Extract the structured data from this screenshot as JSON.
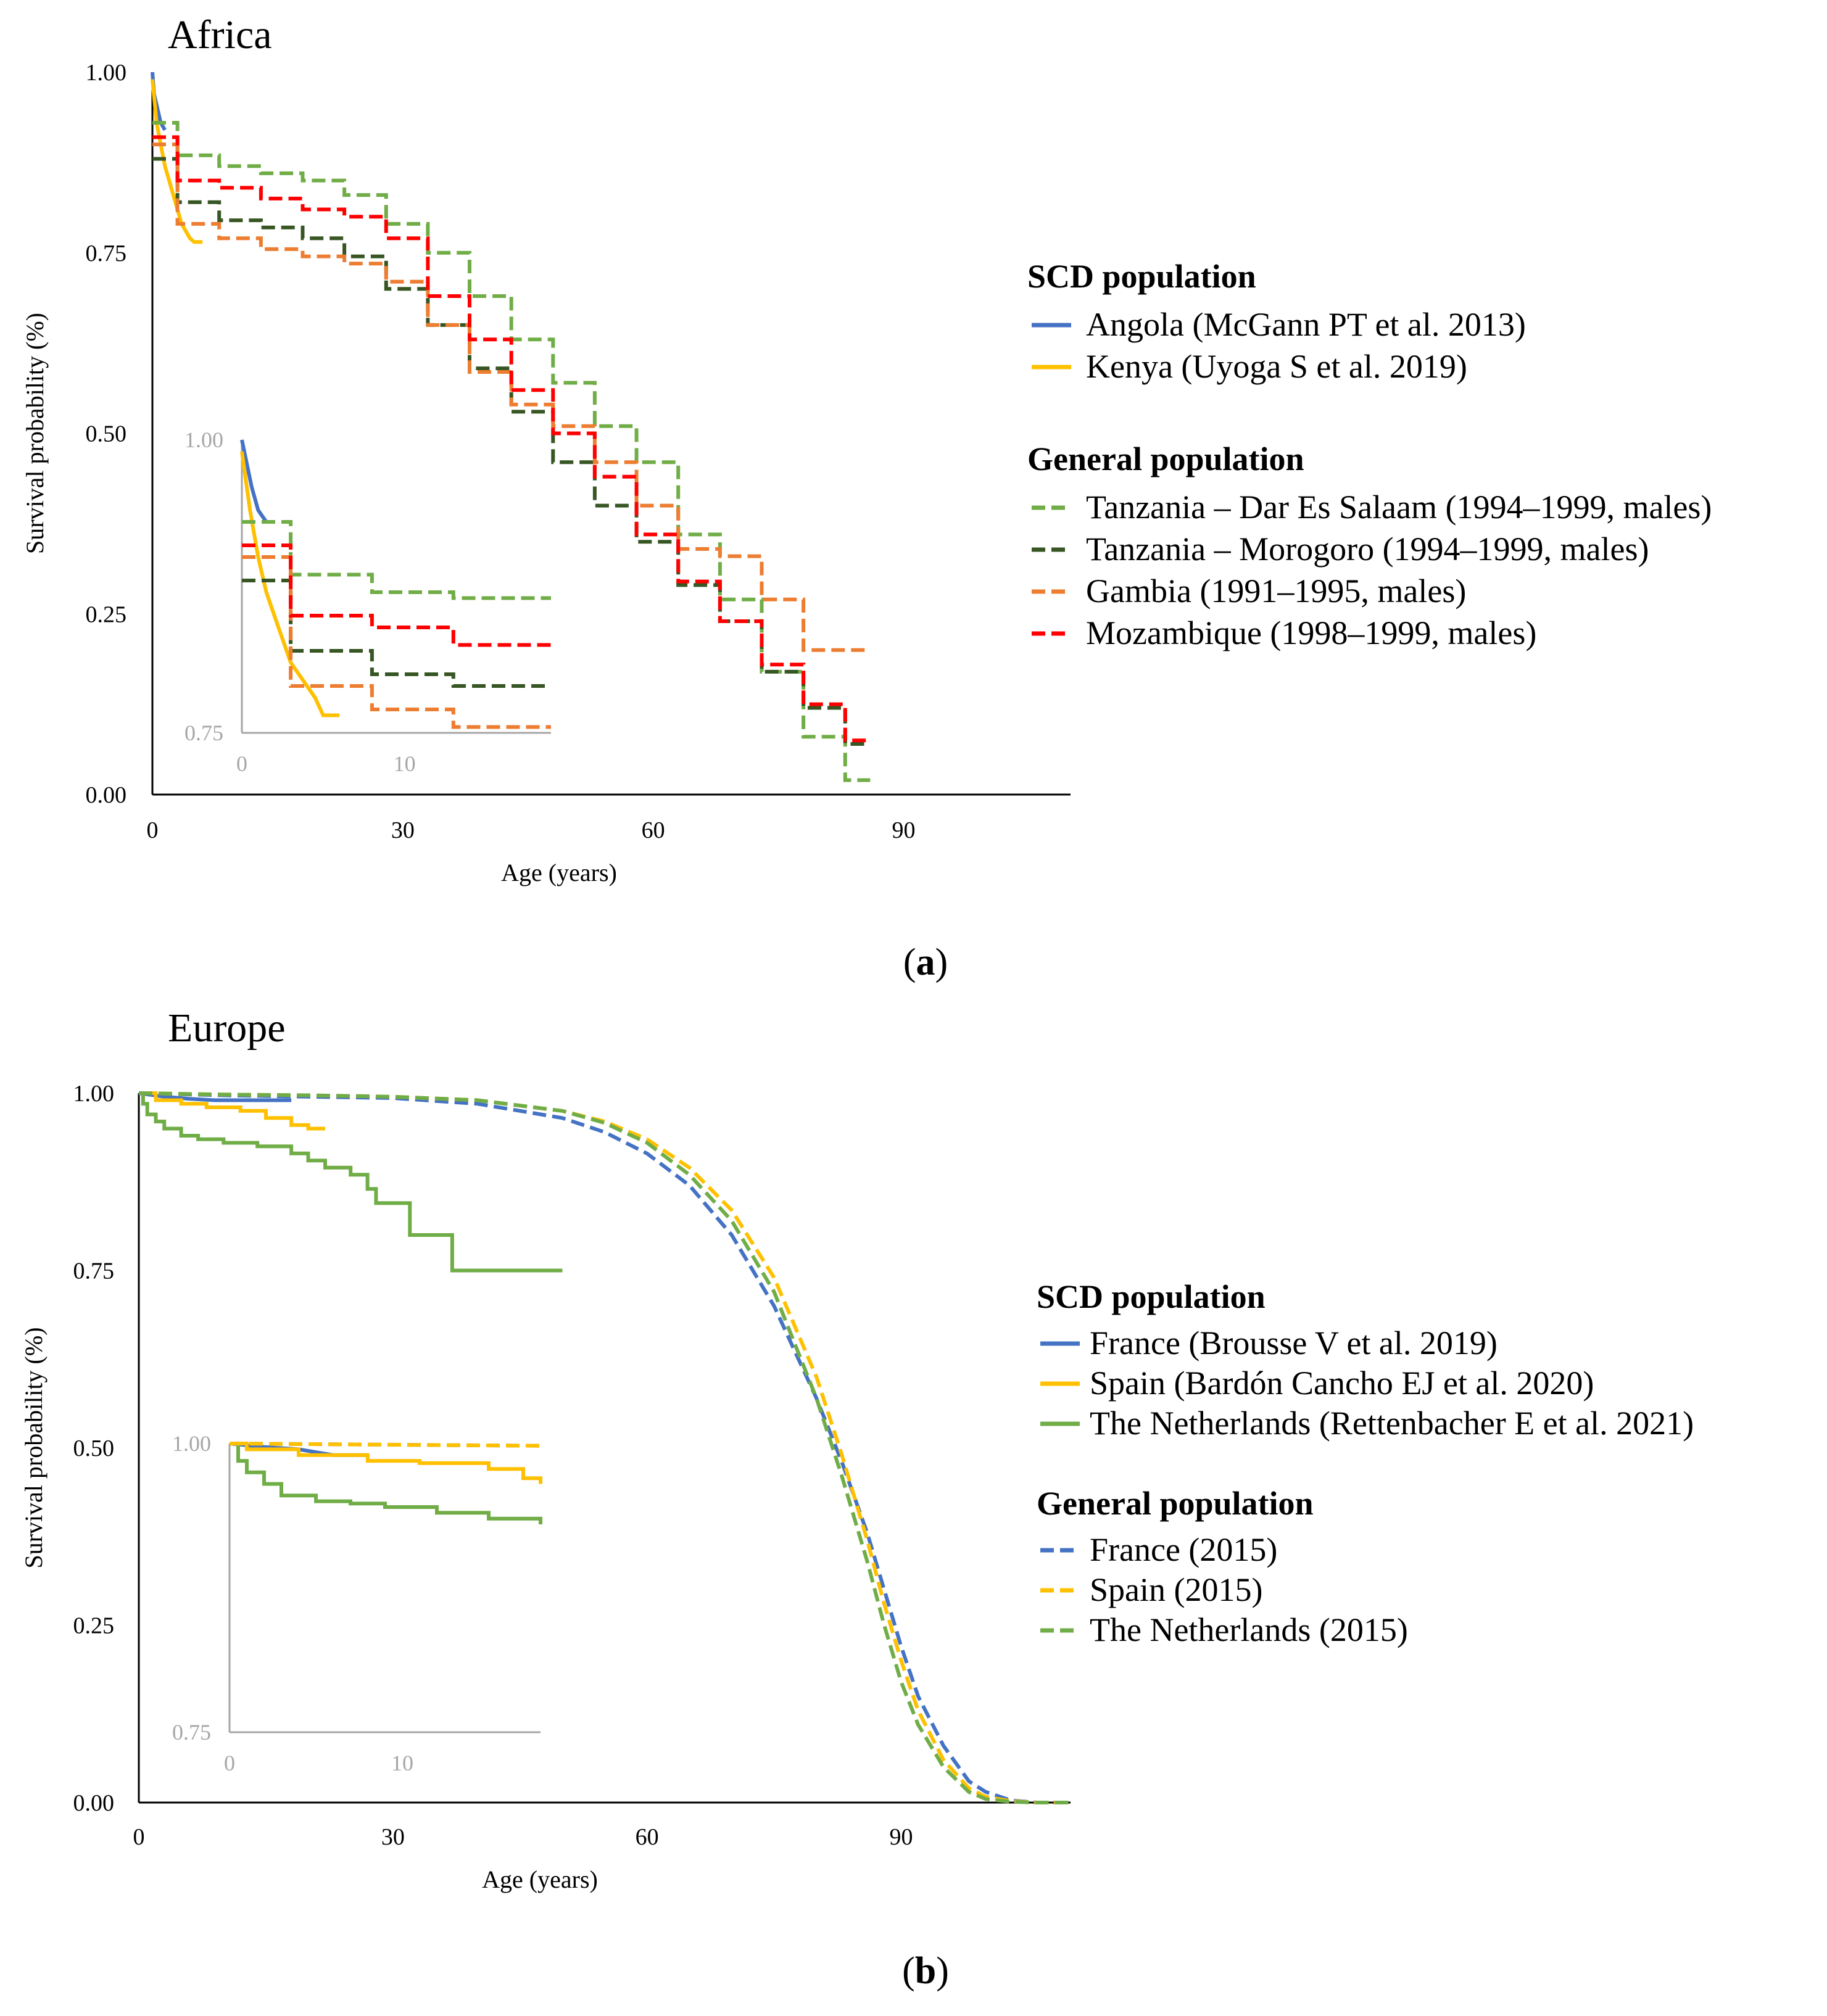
{
  "colors": {
    "blue": "#4472c4",
    "yellow": "#ffc000",
    "lightgreen": "#70ad47",
    "darkgreen": "#375623",
    "orange": "#ed7d31",
    "red": "#ff0000",
    "inset_axis": "#a6a6a6"
  },
  "chart_data": [
    {
      "type": "line",
      "title": "Africa",
      "caption": {
        "open": "(",
        "letter": "a",
        "close": ")"
      },
      "xlabel": "Age (years)",
      "ylabel": "Survival probability (%)",
      "xlim": [
        0,
        110
      ],
      "ylim": [
        0,
        1
      ],
      "xticks": [
        0,
        30,
        60,
        90
      ],
      "yticks": [
        0,
        0.25,
        0.5,
        0.75,
        1
      ],
      "ytick_labels": [
        "0.00",
        "0.25",
        "0.50",
        "0.75",
        "1.00"
      ],
      "legend": {
        "groups": [
          {
            "heading": "SCD population",
            "entries": [
              "Angola (McGann PT et al. 2013)",
              "Kenya (Uyoga S et al. 2019)"
            ]
          },
          {
            "heading": "General population",
            "entries": [
              "Tanzania – Dar Es Salaam (1994–1999, males)",
              "Tanzania – Morogoro (1994–1999, males)",
              "Gambia (1991–1995, males)",
              "Mozambique (1998–1999, males)"
            ]
          }
        ]
      },
      "series": [
        {
          "name": "Angola (McGann PT et al. 2013)",
          "color": "blue",
          "dash": false,
          "step": false,
          "x": [
            0,
            0.2,
            0.6,
            1.0,
            1.5
          ],
          "y": [
            1.0,
            0.97,
            0.95,
            0.93,
            0.92
          ]
        },
        {
          "name": "Kenya (Uyoga S et al. 2019)",
          "color": "yellow",
          "dash": false,
          "step": false,
          "x": [
            0,
            0.5,
            1,
            1.5,
            2,
            2.5,
            3,
            3.5,
            4,
            4.5,
            5,
            5.5,
            6
          ],
          "y": [
            0.99,
            0.93,
            0.9,
            0.87,
            0.85,
            0.83,
            0.81,
            0.79,
            0.78,
            0.77,
            0.765,
            0.765,
            0.765
          ]
        },
        {
          "name": "Tanzania – Dar Es Salaam (1994–1999, males)",
          "color": "lightgreen",
          "dash": true,
          "step": true,
          "x": [
            0,
            1,
            3,
            8,
            13,
            18,
            23,
            28,
            33,
            38,
            43,
            48,
            53,
            58,
            63,
            68,
            73,
            78,
            83,
            86
          ],
          "y": [
            0.93,
            0.93,
            0.885,
            0.87,
            0.86,
            0.85,
            0.83,
            0.79,
            0.75,
            0.69,
            0.63,
            0.57,
            0.51,
            0.46,
            0.36,
            0.27,
            0.17,
            0.08,
            0.02,
            0.02
          ]
        },
        {
          "name": "Tanzania – Morogoro (1994–1999, males)",
          "color": "darkgreen",
          "dash": true,
          "step": true,
          "x": [
            0,
            1,
            3,
            8,
            13,
            18,
            23,
            28,
            33,
            38,
            43,
            48,
            53,
            58,
            63,
            68,
            73,
            78,
            83,
            86
          ],
          "y": [
            0.88,
            0.88,
            0.82,
            0.795,
            0.785,
            0.77,
            0.745,
            0.7,
            0.65,
            0.59,
            0.53,
            0.46,
            0.4,
            0.35,
            0.29,
            0.24,
            0.17,
            0.12,
            0.07,
            0.07
          ]
        },
        {
          "name": "Gambia (1991–1995, males)",
          "color": "orange",
          "dash": true,
          "step": true,
          "x": [
            0,
            1,
            3,
            8,
            13,
            18,
            23,
            28,
            33,
            38,
            43,
            48,
            53,
            58,
            63,
            68,
            73,
            78,
            83,
            86
          ],
          "y": [
            0.9,
            0.9,
            0.79,
            0.77,
            0.755,
            0.745,
            0.735,
            0.71,
            0.65,
            0.585,
            0.54,
            0.51,
            0.46,
            0.4,
            0.34,
            0.33,
            0.27,
            0.2,
            0.2,
            0.2
          ]
        },
        {
          "name": "Mozambique (1998–1999, males)",
          "color": "red",
          "dash": true,
          "step": true,
          "x": [
            0,
            1,
            3,
            8,
            13,
            18,
            23,
            28,
            33,
            38,
            43,
            48,
            53,
            58,
            63,
            68,
            73,
            78,
            83,
            86
          ],
          "y": [
            0.91,
            0.91,
            0.85,
            0.84,
            0.825,
            0.81,
            0.8,
            0.77,
            0.69,
            0.63,
            0.56,
            0.5,
            0.44,
            0.36,
            0.295,
            0.24,
            0.18,
            0.125,
            0.075,
            0.075
          ]
        }
      ],
      "inset": {
        "xlim": [
          0,
          19
        ],
        "ylim": [
          0.75,
          1
        ],
        "xticks": [
          0,
          10
        ],
        "ytick_labels": [
          "0.75",
          "1.00"
        ],
        "yticks": [
          0.75,
          1
        ],
        "series": [
          {
            "color": "blue",
            "dash": false,
            "step": false,
            "x": [
              0,
              0.3,
              0.6,
              1.0,
              1.5
            ],
            "y": [
              1.0,
              0.98,
              0.96,
              0.94,
              0.93
            ]
          },
          {
            "color": "yellow",
            "dash": false,
            "step": false,
            "x": [
              0,
              0.5,
              1,
              1.5,
              2,
              2.5,
              3,
              3.5,
              4,
              4.5,
              5,
              5.5,
              6
            ],
            "y": [
              0.99,
              0.94,
              0.9,
              0.87,
              0.85,
              0.83,
              0.81,
              0.8,
              0.79,
              0.78,
              0.765,
              0.765,
              0.765
            ]
          },
          {
            "color": "lightgreen",
            "dash": true,
            "step": true,
            "x": [
              0,
              1,
              3,
              8,
              13,
              19
            ],
            "y": [
              0.93,
              0.93,
              0.885,
              0.87,
              0.865,
              0.865
            ]
          },
          {
            "color": "darkgreen",
            "dash": true,
            "step": true,
            "x": [
              0,
              1,
              3,
              8,
              13,
              19
            ],
            "y": [
              0.88,
              0.88,
              0.82,
              0.8,
              0.79,
              0.79
            ]
          },
          {
            "color": "orange",
            "dash": true,
            "step": true,
            "x": [
              0,
              1,
              3,
              8,
              13,
              19
            ],
            "y": [
              0.9,
              0.9,
              0.79,
              0.77,
              0.755,
              0.755
            ]
          },
          {
            "color": "red",
            "dash": true,
            "step": true,
            "x": [
              0,
              1,
              3,
              8,
              13,
              19
            ],
            "y": [
              0.91,
              0.91,
              0.85,
              0.84,
              0.825,
              0.825
            ]
          }
        ]
      }
    },
    {
      "type": "line",
      "title": "Europe",
      "caption": {
        "open": "(",
        "letter": "b",
        "close": ")"
      },
      "xlabel": "Age (years)",
      "ylabel": "Survival probability (%)",
      "xlim": [
        0,
        110
      ],
      "ylim": [
        0,
        1
      ],
      "xticks": [
        0,
        30,
        60,
        90
      ],
      "yticks": [
        0,
        0.25,
        0.5,
        0.75,
        1
      ],
      "ytick_labels": [
        "0.00",
        "0.25",
        "0.50",
        "0.75",
        "1.00"
      ],
      "legend": {
        "groups": [
          {
            "heading": "SCD population",
            "entries": [
              "France (Brousse V et al. 2019)",
              "Spain (Bardón Cancho EJ et al. 2020)",
              "The Netherlands (Rettenbacher E et al. 2021)"
            ]
          },
          {
            "heading": "General population",
            "entries": [
              "France (2015)",
              "Spain (2015)",
              "The Netherlands (2015)"
            ]
          }
        ]
      },
      "series": [
        {
          "name": "France (Brousse V et al. 2019)",
          "color": "blue",
          "dash": false,
          "step": false,
          "legend_dash": false,
          "x": [
            0,
            3,
            6,
            9,
            12,
            15,
            18
          ],
          "y": [
            1.0,
            0.995,
            0.992,
            0.99,
            0.99,
            0.99,
            0.99
          ]
        },
        {
          "name": "Spain (Bardón Cancho EJ et al. 2020)",
          "color": "yellow",
          "dash": false,
          "step": true,
          "legend_dash": false,
          "x": [
            0,
            2,
            5,
            8,
            12,
            15,
            18,
            20,
            22
          ],
          "y": [
            1.0,
            0.99,
            0.985,
            0.98,
            0.975,
            0.965,
            0.955,
            0.95,
            0.95
          ]
        },
        {
          "name": "The Netherlands (Rettenbacher E et al. 2021)",
          "color": "lightgreen",
          "dash": false,
          "step": true,
          "legend_dash": false,
          "x": [
            0,
            0.5,
            1,
            2,
            3,
            5,
            7,
            10,
            14,
            18,
            20,
            22,
            25,
            27,
            28,
            32,
            37,
            40,
            45,
            50
          ],
          "y": [
            1.0,
            0.985,
            0.97,
            0.96,
            0.95,
            0.94,
            0.935,
            0.93,
            0.925,
            0.915,
            0.905,
            0.895,
            0.885,
            0.865,
            0.845,
            0.8,
            0.75,
            0.75,
            0.75,
            0.75
          ]
        },
        {
          "name": "France (2015)",
          "color": "blue",
          "dash": true,
          "step": false,
          "legend_dash": true,
          "x": [
            0,
            10,
            20,
            30,
            40,
            50,
            55,
            60,
            65,
            70,
            75,
            80,
            83,
            86,
            88,
            90,
            92,
            95,
            98,
            100,
            103,
            106,
            110
          ],
          "y": [
            1.0,
            0.997,
            0.995,
            0.993,
            0.985,
            0.965,
            0.945,
            0.915,
            0.87,
            0.8,
            0.7,
            0.57,
            0.48,
            0.38,
            0.3,
            0.22,
            0.15,
            0.08,
            0.03,
            0.015,
            0.003,
            0,
            0
          ]
        },
        {
          "name": "Spain (2015)",
          "color": "yellow",
          "dash": true,
          "step": false,
          "legend_dash": true,
          "x": [
            0,
            10,
            20,
            30,
            40,
            50,
            55,
            60,
            65,
            70,
            75,
            80,
            83,
            86,
            88,
            90,
            92,
            95,
            98,
            100,
            103,
            106,
            110
          ],
          "y": [
            1.0,
            0.998,
            0.997,
            0.995,
            0.99,
            0.975,
            0.96,
            0.935,
            0.895,
            0.835,
            0.74,
            0.6,
            0.49,
            0.37,
            0.28,
            0.2,
            0.13,
            0.06,
            0.02,
            0.008,
            0.002,
            0,
            0
          ]
        },
        {
          "name": "The Netherlands (2015)",
          "color": "lightgreen",
          "dash": true,
          "step": false,
          "legend_dash": true,
          "x": [
            0,
            10,
            20,
            30,
            40,
            50,
            55,
            60,
            65,
            70,
            75,
            80,
            83,
            86,
            88,
            90,
            92,
            95,
            98,
            100,
            103,
            106,
            110
          ],
          "y": [
            1.0,
            0.998,
            0.997,
            0.995,
            0.99,
            0.975,
            0.958,
            0.93,
            0.885,
            0.82,
            0.72,
            0.57,
            0.46,
            0.34,
            0.25,
            0.17,
            0.11,
            0.05,
            0.015,
            0.005,
            0.001,
            0,
            0
          ]
        }
      ],
      "inset": {
        "xlim": [
          0,
          18
        ],
        "ylim": [
          0.75,
          1
        ],
        "xticks": [
          0,
          10
        ],
        "ytick_labels": [
          "0.75",
          "1.00"
        ],
        "yticks": [
          0.75,
          1
        ],
        "series": [
          {
            "color": "blue",
            "dash": false,
            "step": false,
            "x": [
              0,
              2,
              4,
              6,
              8
            ],
            "y": [
              1.0,
              0.997,
              0.995,
              0.99,
              0.99
            ]
          },
          {
            "color": "yellow",
            "dash": false,
            "step": true,
            "x": [
              0,
              1,
              4,
              8,
              11,
              15,
              17,
              18
            ],
            "y": [
              1.0,
              0.995,
              0.99,
              0.985,
              0.983,
              0.978,
              0.97,
              0.965
            ]
          },
          {
            "color": "lightgreen",
            "dash": false,
            "step": true,
            "x": [
              0,
              0.5,
              1,
              2,
              3,
              5,
              7,
              9,
              12,
              15,
              18
            ],
            "y": [
              1.0,
              0.985,
              0.975,
              0.965,
              0.955,
              0.95,
              0.948,
              0.945,
              0.94,
              0.935,
              0.93
            ]
          },
          {
            "color": "blue",
            "dash": true,
            "step": false,
            "x": [
              0,
              18
            ],
            "y": [
              1.0,
              0.998
            ]
          },
          {
            "color": "yellow",
            "dash": true,
            "step": false,
            "x": [
              0,
              18
            ],
            "y": [
              1.0,
              0.998
            ]
          }
        ]
      }
    }
  ]
}
